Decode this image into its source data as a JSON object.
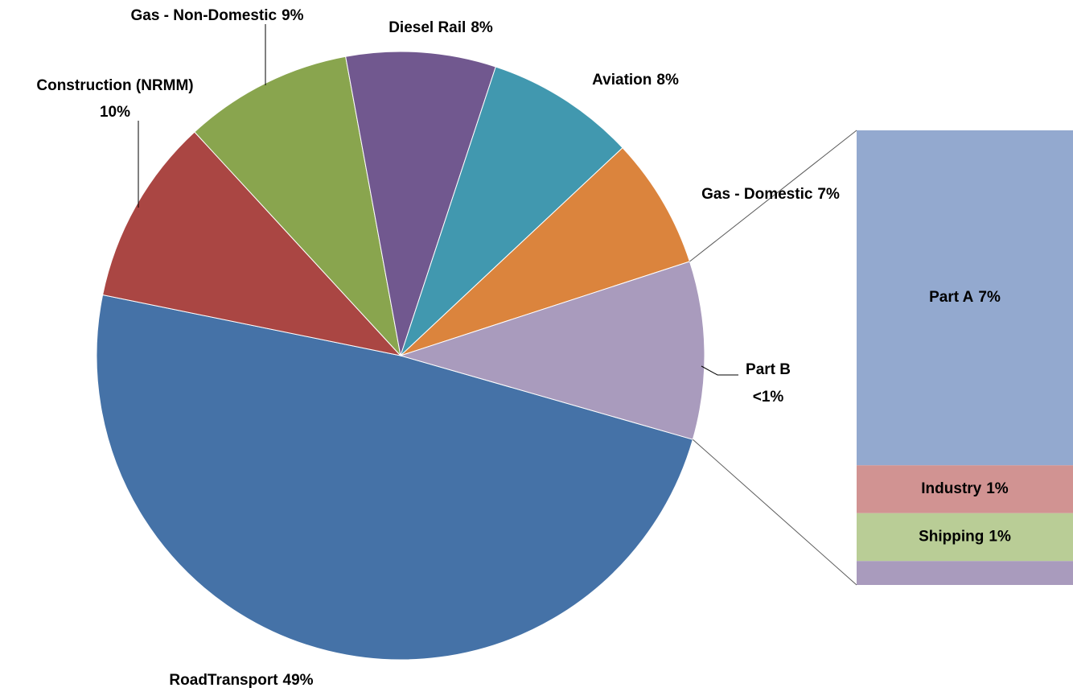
{
  "chart_data": {
    "type": "pie-of-bar",
    "categories": [
      "RoadTransport",
      "Construction (NRMM)",
      "Gas - Non-Domestic",
      "Diesel Rail",
      "Aviation",
      "Gas - Domestic"
    ],
    "values": [
      49,
      10,
      9,
      8,
      8,
      7
    ],
    "value_labels": [
      "49%",
      "10%",
      "9%",
      "8%",
      "8%",
      "7%"
    ],
    "colors": [
      "#4572a7",
      "#aa4643",
      "#89a54e",
      "#71588f",
      "#4198af",
      "#db843d"
    ],
    "bar": {
      "categories": [
        "Part A",
        "Industry",
        "Shipping",
        "Part B"
      ],
      "values": [
        7,
        1,
        1,
        0.5
      ],
      "value_labels": [
        "7%",
        "1%",
        "1%",
        "<1%"
      ],
      "colors": [
        "#93a9cf",
        "#d19392",
        "#b9cd96",
        "#a99bbd"
      ]
    },
    "other_color": "#a99bbd"
  }
}
